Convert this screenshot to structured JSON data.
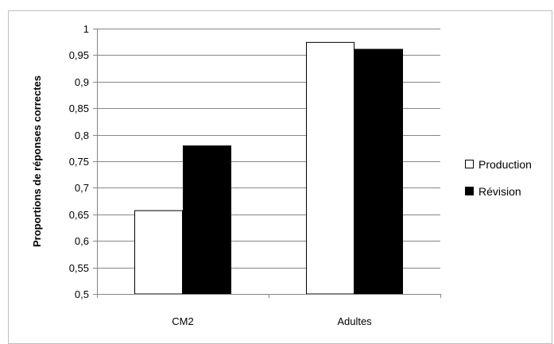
{
  "chart_data": {
    "type": "bar",
    "title": "",
    "xlabel": "",
    "ylabel": "Proportions  de réponses correctes",
    "ylim": [
      0.5,
      1
    ],
    "yticks": [
      0.5,
      0.55,
      0.6,
      0.65,
      0.7,
      0.75,
      0.8,
      0.85,
      0.9,
      0.95,
      1
    ],
    "ytick_labels": [
      "0,5",
      "0,55",
      "0,6",
      "0,65",
      "0,7",
      "0,75",
      "0,8",
      "0,85",
      "0,9",
      "0,95",
      "1"
    ],
    "grid": true,
    "legend_position": "right",
    "categories": [
      "CM2",
      "Adultes"
    ],
    "series": [
      {
        "name": "Production",
        "color": "#ffffff",
        "values": [
          0.657,
          0.974
        ]
      },
      {
        "name": "Révision",
        "color": "#000000",
        "values": [
          0.779,
          0.961
        ]
      }
    ]
  }
}
